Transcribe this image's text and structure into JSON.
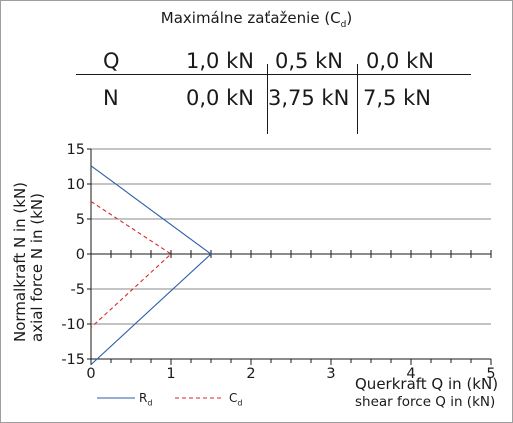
{
  "table": {
    "title": "Maximálne zaťaženie (C",
    "title_sub": "d",
    "title_close": ")",
    "rows": [
      {
        "label": "Q",
        "values": [
          "1,0 kN",
          "0,5 kN",
          "0,0 kN"
        ]
      },
      {
        "label": "N",
        "values": [
          "0,0 kN",
          "3,75 kN",
          "7,5 kN"
        ]
      }
    ]
  },
  "chart_data": {
    "type": "line",
    "ylabel": "Normalkraft N in (kN)",
    "ylabel2": "axial force N in (kN)",
    "xlabel": "Querkraft Q in (kN)",
    "xlabel2": "shear force Q in (kN)",
    "xlim": [
      0,
      5
    ],
    "ylim": [
      -15,
      15
    ],
    "x_ticks": [
      0,
      1,
      2,
      3,
      4,
      5
    ],
    "y_ticks": [
      15,
      10,
      5,
      0,
      -5,
      -10,
      -15
    ],
    "y_tick_labels": [
      "15",
      "10",
      "5",
      "0",
      "-5",
      "-10",
      "-15"
    ],
    "grid": "horizontal",
    "legend": "bottom",
    "series": [
      {
        "name": "R",
        "name_sub": "d",
        "color": "#2b5fa8",
        "dash": "solid",
        "x": [
          0,
          1.5,
          0
        ],
        "y": [
          12.6,
          0,
          -15.8
        ]
      },
      {
        "name": "C",
        "name_sub": "d",
        "color": "#d9262c",
        "dash": "dashed",
        "x": [
          0,
          1.0,
          0
        ],
        "y": [
          7.5,
          0,
          -10.5
        ]
      }
    ]
  }
}
